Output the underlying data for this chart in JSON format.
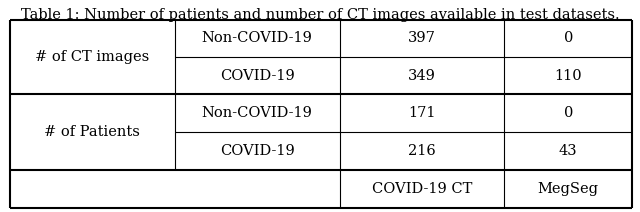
{
  "title": "Table 1: Number of patients and number of CT images available in test datasets.",
  "col_headers": [
    "",
    "",
    "COVID-19 CT",
    "MegSeg"
  ],
  "rows": [
    [
      "# of Patients",
      "COVID-19",
      "216",
      "43"
    ],
    [
      "# of Patients",
      "Non-COVID-19",
      "171",
      "0"
    ],
    [
      "# of CT images",
      "COVID-19",
      "349",
      "110"
    ],
    [
      "# of CT images",
      "Non-COVID-19",
      "397",
      "0"
    ]
  ],
  "merged_col0": [
    {
      "label": "# of Patients"
    },
    {
      "label": "# of CT images"
    }
  ],
  "background_color": "#ffffff",
  "title_fontsize": 10.5,
  "cell_fontsize": 10.5,
  "figure_width": 6.4,
  "figure_height": 2.12
}
